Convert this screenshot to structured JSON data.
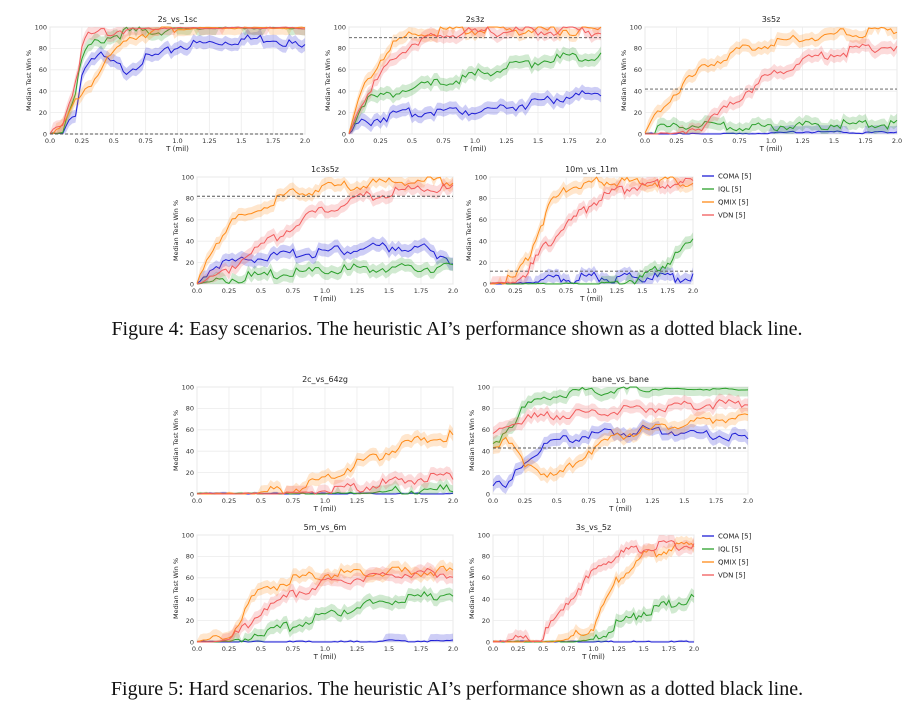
{
  "captions": {
    "fig4": "Figure 4: Easy scenarios. The heuristic AI’s performance shown as a dotted black line.",
    "fig5": "Figure 5: Hard scenarios. The heuristic AI’s performance shown as a dotted black line."
  },
  "colors": {
    "COMA": "#1f1fd6",
    "IQL": "#2ca02c",
    "QMIX": "#ff8c1a",
    "VDN": "#f25c5c",
    "heuristic": "#555555"
  },
  "legends": [
    {
      "entries": [
        "COMA [5]",
        "IQL [5]",
        "QMIX [5]",
        "VDN [5]"
      ]
    },
    {
      "entries": [
        "COMA [5]",
        "IQL [5]",
        "QMIX [5]",
        "VDN [5]"
      ]
    }
  ],
  "chart_data": [
    {
      "type": "line",
      "title": "2s_vs_1sc",
      "xlabel": "T (mil)",
      "ylabel": "Median Test Win %",
      "xlim": [
        0,
        2
      ],
      "ylim": [
        0,
        100
      ],
      "heuristic": 0,
      "x": [
        0,
        0.1,
        0.2,
        0.25,
        0.3,
        0.4,
        0.5,
        0.6,
        0.75,
        0.9,
        1.0,
        1.25,
        1.5,
        1.75,
        2.0
      ],
      "series": [
        {
          "name": "COMA",
          "values": [
            0,
            0,
            20,
            55,
            70,
            72,
            65,
            60,
            70,
            75,
            82,
            85,
            88,
            90,
            80
          ]
        },
        {
          "name": "IQL",
          "values": [
            0,
            5,
            40,
            70,
            80,
            88,
            92,
            95,
            96,
            97,
            98,
            99,
            99,
            99,
            99
          ]
        },
        {
          "name": "QMIX",
          "values": [
            0,
            5,
            30,
            40,
            45,
            60,
            75,
            90,
            95,
            97,
            98,
            99,
            99,
            99,
            99
          ]
        },
        {
          "name": "VDN",
          "values": [
            0,
            10,
            50,
            80,
            92,
            96,
            97,
            98,
            98,
            99,
            99,
            99,
            99,
            99,
            99
          ]
        }
      ]
    },
    {
      "type": "line",
      "title": "2s3z",
      "xlabel": "T (mil)",
      "ylabel": "Median Test Win %",
      "xlim": [
        0,
        2
      ],
      "ylim": [
        0,
        100
      ],
      "heuristic": 90,
      "x": [
        0,
        0.1,
        0.25,
        0.4,
        0.5,
        0.75,
        1.0,
        1.25,
        1.5,
        1.75,
        2.0
      ],
      "series": [
        {
          "name": "COMA",
          "values": [
            0,
            10,
            15,
            18,
            20,
            22,
            22,
            25,
            30,
            35,
            38
          ]
        },
        {
          "name": "IQL",
          "values": [
            0,
            30,
            35,
            40,
            42,
            48,
            55,
            62,
            68,
            72,
            74
          ]
        },
        {
          "name": "QMIX",
          "values": [
            0,
            40,
            70,
            88,
            93,
            96,
            97,
            97,
            97,
            97,
            97
          ]
        },
        {
          "name": "VDN",
          "values": [
            0,
            30,
            55,
            75,
            85,
            92,
            95,
            96,
            96,
            96,
            96
          ]
        }
      ]
    },
    {
      "type": "line",
      "title": "3s5z",
      "xlabel": "T (mil)",
      "ylabel": "Median Test Win %",
      "xlim": [
        0,
        2
      ],
      "ylim": [
        0,
        100
      ],
      "heuristic": 42,
      "x": [
        0,
        0.1,
        0.25,
        0.5,
        0.75,
        1.0,
        1.25,
        1.5,
        1.75,
        2.0
      ],
      "series": [
        {
          "name": "COMA",
          "values": [
            0,
            0,
            0,
            0,
            0,
            1,
            2,
            2,
            1,
            2
          ]
        },
        {
          "name": "IQL",
          "values": [
            0,
            5,
            8,
            8,
            6,
            7,
            8,
            9,
            9,
            9
          ]
        },
        {
          "name": "QMIX",
          "values": [
            0,
            20,
            40,
            65,
            78,
            85,
            90,
            93,
            95,
            96
          ]
        },
        {
          "name": "VDN",
          "values": [
            0,
            0,
            0,
            10,
            35,
            55,
            68,
            75,
            80,
            82
          ]
        }
      ]
    },
    {
      "type": "line",
      "title": "1c3s5z",
      "xlabel": "T (mil)",
      "ylabel": "Median Test Win %",
      "xlim": [
        0,
        2
      ],
      "ylim": [
        0,
        100
      ],
      "heuristic": 82,
      "x": [
        0,
        0.1,
        0.25,
        0.5,
        0.75,
        1.0,
        1.25,
        1.5,
        1.75,
        2.0
      ],
      "series": [
        {
          "name": "COMA",
          "values": [
            0,
            15,
            20,
            25,
            28,
            30,
            33,
            35,
            34,
            22
          ]
        },
        {
          "name": "IQL",
          "values": [
            0,
            2,
            5,
            8,
            10,
            12,
            14,
            15,
            15,
            17
          ]
        },
        {
          "name": "QMIX",
          "values": [
            0,
            30,
            55,
            72,
            85,
            90,
            93,
            95,
            96,
            96
          ]
        },
        {
          "name": "VDN",
          "values": [
            0,
            5,
            15,
            35,
            55,
            70,
            80,
            85,
            90,
            88
          ]
        }
      ]
    },
    {
      "type": "line",
      "title": "10m_vs_11m",
      "xlabel": "T (mil)",
      "ylabel": "Median Test Win %",
      "xlim": [
        0,
        2
      ],
      "ylim": [
        0,
        100
      ],
      "heuristic": 12,
      "x": [
        0,
        0.25,
        0.4,
        0.5,
        0.6,
        0.75,
        1.0,
        1.25,
        1.5,
        1.75,
        2.0
      ],
      "series": [
        {
          "name": "COMA",
          "values": [
            0,
            0,
            2,
            4,
            5,
            5,
            6,
            6,
            6,
            6,
            6
          ]
        },
        {
          "name": "IQL",
          "values": [
            0,
            0,
            0,
            0,
            0,
            0,
            0,
            2,
            5,
            20,
            40
          ]
        },
        {
          "name": "QMIX",
          "values": [
            0,
            5,
            30,
            55,
            75,
            90,
            95,
            96,
            96,
            96,
            96
          ]
        },
        {
          "name": "VDN",
          "values": [
            0,
            2,
            15,
            30,
            40,
            55,
            75,
            88,
            92,
            94,
            95
          ]
        }
      ]
    },
    {
      "type": "line",
      "title": "2c_vs_64zg",
      "xlabel": "T (mil)",
      "ylabel": "Median Test Win %",
      "xlim": [
        0,
        2
      ],
      "ylim": [
        0,
        100
      ],
      "x": [
        0,
        0.25,
        0.5,
        0.75,
        1.0,
        1.25,
        1.5,
        1.75,
        2.0
      ],
      "series": [
        {
          "name": "COMA",
          "values": [
            0,
            0,
            0,
            0,
            0,
            0,
            0,
            0,
            0
          ]
        },
        {
          "name": "IQL",
          "values": [
            0,
            0,
            0,
            0,
            0,
            1,
            2,
            3,
            5
          ]
        },
        {
          "name": "QMIX",
          "values": [
            0,
            0,
            1,
            5,
            15,
            28,
            40,
            50,
            55
          ]
        },
        {
          "name": "VDN",
          "values": [
            0,
            0,
            0,
            1,
            3,
            6,
            10,
            15,
            18
          ]
        }
      ]
    },
    {
      "type": "line",
      "title": "bane_vs_bane",
      "xlabel": "T (mil)",
      "ylabel": "Median Test Win %",
      "xlim": [
        0,
        2
      ],
      "ylim": [
        0,
        100
      ],
      "heuristic": 43,
      "x": [
        0,
        0.1,
        0.25,
        0.4,
        0.5,
        0.75,
        1.0,
        1.25,
        1.5,
        1.75,
        2.0
      ],
      "series": [
        {
          "name": "COMA",
          "values": [
            10,
            5,
            30,
            45,
            50,
            55,
            58,
            60,
            58,
            55,
            50
          ]
        },
        {
          "name": "IQL",
          "values": [
            45,
            60,
            80,
            88,
            92,
            96,
            97,
            98,
            98,
            98,
            98
          ]
        },
        {
          "name": "QMIX",
          "values": [
            45,
            50,
            30,
            20,
            15,
            40,
            55,
            60,
            65,
            70,
            72
          ]
        },
        {
          "name": "VDN",
          "values": [
            55,
            65,
            70,
            72,
            74,
            76,
            78,
            80,
            82,
            84,
            85
          ]
        }
      ]
    },
    {
      "type": "line",
      "title": "5m_vs_6m",
      "xlabel": "T (mil)",
      "ylabel": "Median Test Win %",
      "xlim": [
        0,
        2
      ],
      "ylim": [
        0,
        100
      ],
      "x": [
        0,
        0.25,
        0.4,
        0.5,
        0.75,
        1.0,
        1.25,
        1.5,
        1.75,
        2.0
      ],
      "series": [
        {
          "name": "COMA",
          "values": [
            0,
            0,
            0,
            0,
            0,
            0,
            0,
            1,
            1,
            1
          ]
        },
        {
          "name": "IQL",
          "values": [
            0,
            0,
            5,
            10,
            15,
            25,
            33,
            38,
            42,
            46
          ]
        },
        {
          "name": "QMIX",
          "values": [
            0,
            5,
            35,
            48,
            58,
            63,
            65,
            65,
            66,
            66
          ]
        },
        {
          "name": "VDN",
          "values": [
            0,
            2,
            15,
            30,
            45,
            55,
            60,
            63,
            64,
            64
          ]
        }
      ]
    },
    {
      "type": "line",
      "title": "3s_vs_5z",
      "xlabel": "T (mil)",
      "ylabel": "Median Test Win %",
      "xlim": [
        0,
        2
      ],
      "ylim": [
        0,
        100
      ],
      "x": [
        0,
        0.5,
        0.75,
        1.0,
        1.1,
        1.25,
        1.5,
        1.75,
        2.0
      ],
      "series": [
        {
          "name": "COMA",
          "values": [
            0,
            0,
            0,
            0,
            0,
            0,
            0,
            0,
            0
          ]
        },
        {
          "name": "IQL",
          "values": [
            0,
            0,
            0,
            2,
            8,
            18,
            28,
            35,
            42
          ]
        },
        {
          "name": "QMIX",
          "values": [
            0,
            0,
            2,
            15,
            35,
            60,
            80,
            88,
            90
          ]
        },
        {
          "name": "VDN",
          "values": [
            0,
            5,
            40,
            65,
            75,
            82,
            88,
            90,
            90
          ]
        }
      ]
    }
  ]
}
